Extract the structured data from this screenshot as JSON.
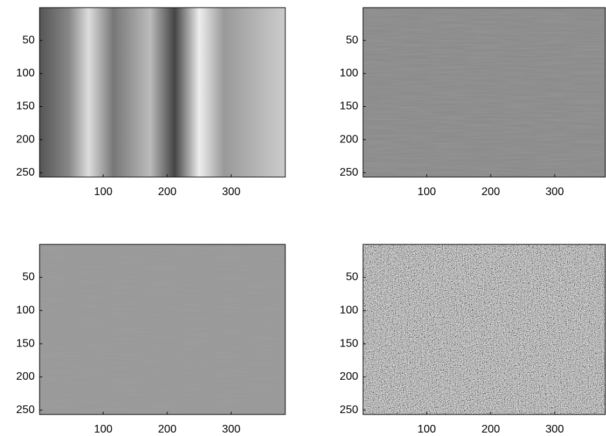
{
  "chart_data": [
    {
      "type": "image",
      "colormap": "gray",
      "xlim": [
        0.5,
        384.5
      ],
      "ylim": [
        256.5,
        0.5
      ],
      "xticks": [
        100,
        200,
        300
      ],
      "yticks": [
        50,
        100,
        150,
        200,
        250
      ]
    },
    {
      "type": "image",
      "colormap": "gray",
      "xlim": [
        0.5,
        384.5
      ],
      "ylim": [
        256.5,
        0.5
      ],
      "xticks": [
        100,
        200,
        300
      ],
      "yticks": [
        50,
        100,
        150,
        200,
        250
      ]
    },
    {
      "type": "image",
      "colormap": "gray",
      "xlim": [
        0.5,
        384.5
      ],
      "ylim": [
        256.5,
        0.5
      ],
      "xticks": [
        100,
        200,
        300
      ],
      "yticks": [
        50,
        100,
        150,
        200,
        250
      ]
    },
    {
      "type": "image",
      "colormap": "gray",
      "xlim": [
        0.5,
        384.5
      ],
      "ylim": [
        256.5,
        0.5
      ],
      "xticks": [
        100,
        200,
        300
      ],
      "yticks": [
        50,
        100,
        150,
        200,
        250
      ]
    }
  ]
}
